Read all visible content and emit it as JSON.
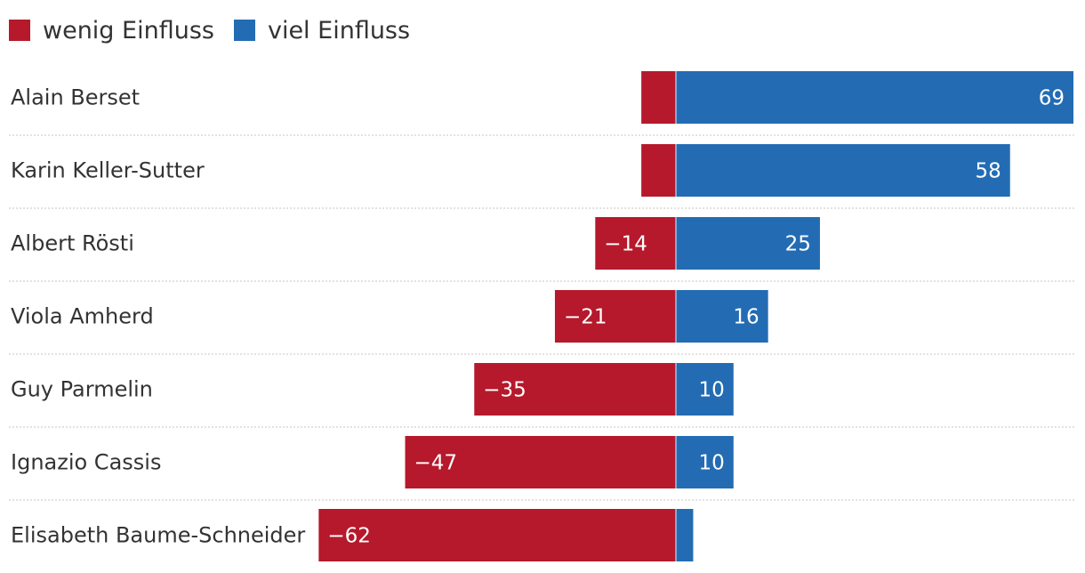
{
  "chart_data": {
    "type": "bar",
    "orientation": "horizontal-diverging",
    "legend": [
      {
        "label": "wenig Einfluss",
        "color": "#b5192b"
      },
      {
        "label": "viel Einfluss",
        "color": "#236cb4"
      }
    ],
    "categories": [
      "Alain Berset",
      "Karin Keller-Sutter",
      "Albert Rösti",
      "Viola Amherd",
      "Guy Parmelin",
      "Ignazio Cassis",
      "Elisabeth Baume-Schneider"
    ],
    "series": [
      {
        "name": "wenig Einfluss",
        "values": [
          -6,
          -6,
          -14,
          -21,
          -35,
          -47,
          -62
        ],
        "labels": [
          "",
          "",
          "−14",
          "−21",
          "−35",
          "−47",
          "−62"
        ]
      },
      {
        "name": "viel Einfluss",
        "values": [
          69,
          58,
          25,
          16,
          10,
          10,
          3
        ],
        "labels": [
          "69",
          "58",
          "25",
          "16",
          "10",
          "10",
          ""
        ]
      }
    ],
    "xlim": [
      -62,
      69
    ]
  }
}
